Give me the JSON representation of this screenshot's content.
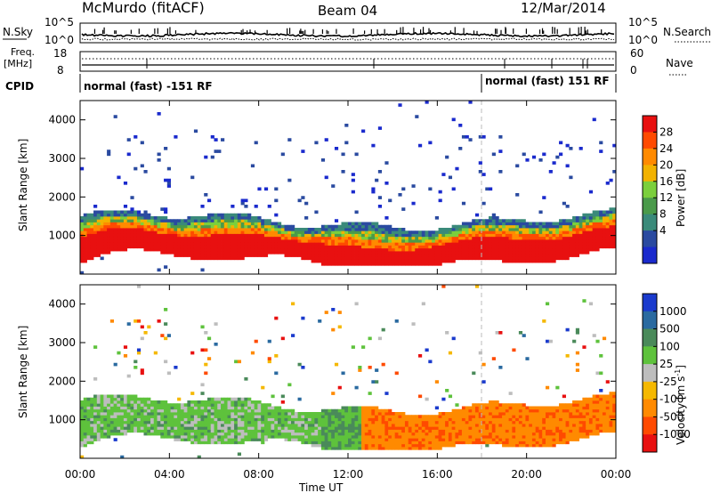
{
  "header": {
    "site": "McMurdo (fitACF)",
    "beam": "Beam 04",
    "date": "12/Mar/2014"
  },
  "labels": {
    "nsky": "N.Sky",
    "nsearch": "N.Search",
    "freq": "Freq.",
    "mhz": "[MHz]",
    "nave": "Nave",
    "cpid": "CPID",
    "power_unit": "Power [dB]",
    "velocity_unit": "Velocity [m s",
    "velocity_exp": "-1",
    "velocity_close": "]",
    "time_axis": "Time UT",
    "slant_range": "Slant Range [km]"
  },
  "cpid_labels": [
    "normal (fast) -151 RF",
    "normal (fast) 151 RF"
  ],
  "chart_data": [
    {
      "type": "line",
      "name": "noise-panel",
      "left_ticks": [
        "10^5",
        "10^0"
      ],
      "right_ticks": [
        "10^5",
        "10^0"
      ],
      "series": [
        {
          "name": "N.Sky",
          "style": "solid"
        },
        {
          "name": "N.Search",
          "style": "dotted"
        }
      ]
    },
    {
      "type": "line",
      "name": "freq-nave-panel",
      "left_ticks": [
        "18",
        "8"
      ],
      "right_ticks": [
        "60",
        "0"
      ],
      "ylim_left": [
        8,
        18
      ],
      "ylim_right": [
        0,
        60
      ],
      "series": [
        {
          "name": "Freq.",
          "style": "solid"
        },
        {
          "name": "Nave",
          "style": "dotted"
        }
      ]
    },
    {
      "type": "heatmap",
      "name": "power",
      "xlabel": "",
      "ylabel": "Slant Range [km]",
      "ylim": [
        0,
        4500
      ],
      "yticks": [
        "1000",
        "2000",
        "3000",
        "4000"
      ],
      "ytick_values": [
        1000,
        2000,
        3000,
        4000
      ],
      "colorbar_ticks": [
        "28",
        "24",
        "20",
        "16",
        "12",
        "8",
        "4"
      ],
      "colorbar_colors": [
        "#e81010",
        "#ff4a00",
        "#ff8a00",
        "#f2b200",
        "#7bcf3c",
        "#4a9a4a",
        "#3a8a7a",
        "#2a4aa0",
        "#1a2acd"
      ]
    },
    {
      "type": "heatmap",
      "name": "velocity",
      "xlabel": "Time UT",
      "ylabel": "Slant Range [km]",
      "ylim": [
        0,
        4500
      ],
      "yticks": [
        "1000",
        "2000",
        "3000",
        "4000"
      ],
      "ytick_values": [
        1000,
        2000,
        3000,
        4000
      ],
      "xticks": [
        "00:00",
        "04:00",
        "08:00",
        "12:00",
        "16:00",
        "20:00",
        "00:00"
      ],
      "colorbar_ticks": [
        "1000",
        "500",
        "100",
        "25",
        "-25",
        "-100",
        "-500",
        "-1000"
      ],
      "colorbar_colors": [
        "#1a3acd",
        "#2a6aa0",
        "#4a8a5a",
        "#5ec23c",
        "#bdbdbd",
        "#f5b800",
        "#ff8a00",
        "#ff4a00",
        "#e81010"
      ]
    }
  ]
}
